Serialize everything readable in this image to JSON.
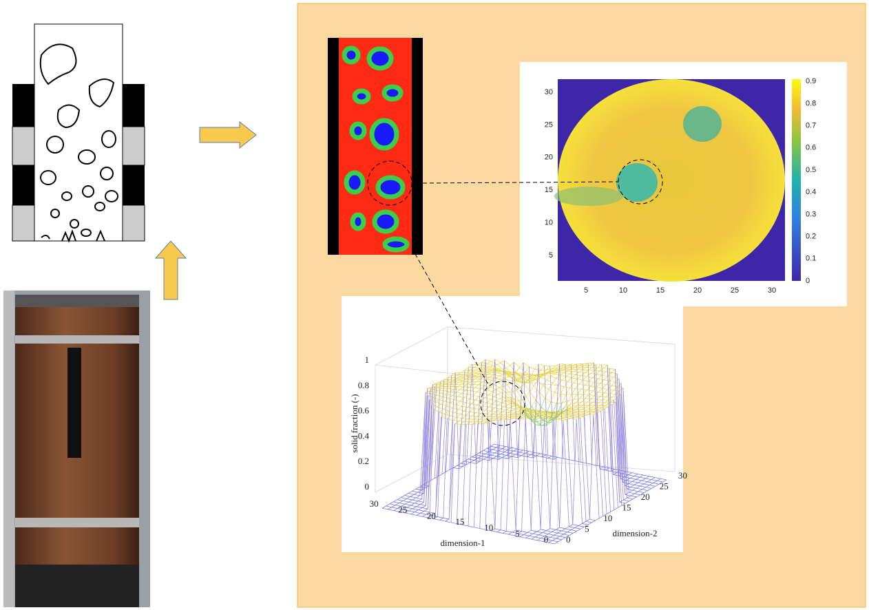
{
  "heatmap": {
    "xticks": [
      5,
      10,
      15,
      20,
      25,
      30
    ],
    "yticks": [
      5,
      10,
      15,
      20,
      25,
      30
    ],
    "colorbar_ticks": [
      0,
      0.1,
      0.2,
      0.3,
      0.4,
      0.5,
      0.6,
      0.7,
      0.8,
      0.9
    ]
  },
  "surface": {
    "zlabel": "solid fraction (-)",
    "zticks": [
      0,
      0.2,
      0.4,
      0.6,
      0.8,
      1
    ],
    "xlabel": "dimension-1",
    "xticks": [
      30,
      25,
      20,
      15,
      10,
      5,
      0
    ],
    "ylabel": "dimension-2",
    "yticks": [
      0,
      5,
      10,
      15,
      20,
      25,
      30
    ]
  }
}
